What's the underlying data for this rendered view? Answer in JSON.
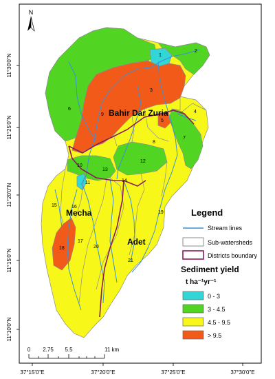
{
  "north_arrow": "N",
  "lat_labels": [
    "11°30'0\"N",
    "11°25'0\"N",
    "11°20'0\"N",
    "11°15'0\"N",
    "11°10'0\"N"
  ],
  "lon_labels": [
    "37°15'0\"E",
    "37°20'0\"E",
    "37°25'0\"E",
    "37°30'0\"E"
  ],
  "districts": {
    "bahir_dar_zuria": "Bahir Dar Zuria",
    "mecha": "Mecha",
    "adet": "Adet"
  },
  "subwatershed_numbers": [
    "1",
    "2",
    "3",
    "4",
    "5",
    "6",
    "7",
    "8",
    "9",
    "10",
    "11",
    "12",
    "13",
    "14",
    "15",
    "16",
    "17",
    "18",
    "19",
    "20",
    "21"
  ],
  "legend": {
    "title": "Legend",
    "items": [
      {
        "label": "Stream lines",
        "symbol": "line",
        "color": "#3a8fd6"
      },
      {
        "label": "Sub-watersheds",
        "symbol": "box",
        "color": "#8c8c8c"
      },
      {
        "label": "Districts boundary",
        "symbol": "box",
        "color": "#8a1a5a"
      }
    ],
    "sediment_title": "Sediment yield",
    "sediment_unit": "t ha⁻¹yr⁻¹",
    "classes": [
      {
        "label": "0 - 3",
        "color": "#33d6d6"
      },
      {
        "label": "3 - 4.5",
        "color": "#52d422"
      },
      {
        "label": "4.5 - 9.5",
        "color": "#f7f71a"
      },
      {
        "label": "> 9.5",
        "color": "#f25a1a"
      }
    ]
  },
  "scale_bar": {
    "ticks": [
      "0",
      "2.75",
      "5.5",
      "11 km"
    ]
  }
}
